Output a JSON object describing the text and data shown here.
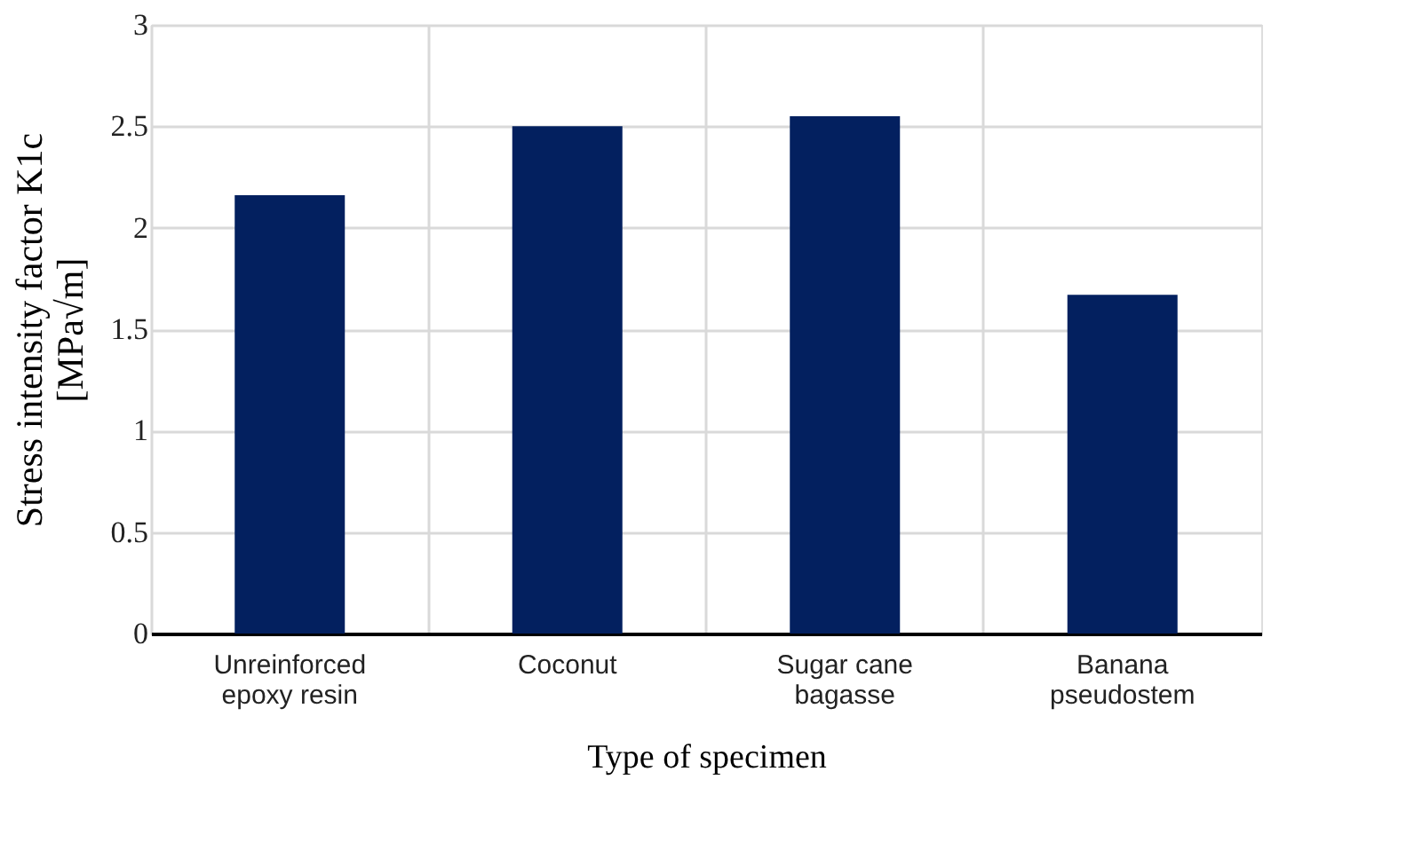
{
  "chart_data": {
    "type": "bar",
    "categories": [
      "Unreinforced epoxy resin",
      "Coconut",
      "Sugar cane bagasse",
      "Banana pseudostem"
    ],
    "values": [
      2.16,
      2.5,
      2.55,
      1.67
    ],
    "color": "#03205f",
    "xlabel": "Type of specimen",
    "ylabel": "Stress intensity factor K1c\n[MPa√m]",
    "ylim": [
      0,
      3
    ],
    "yticks": [
      0,
      0.5,
      1,
      1.5,
      2,
      2.5,
      3
    ],
    "grid": true
  }
}
